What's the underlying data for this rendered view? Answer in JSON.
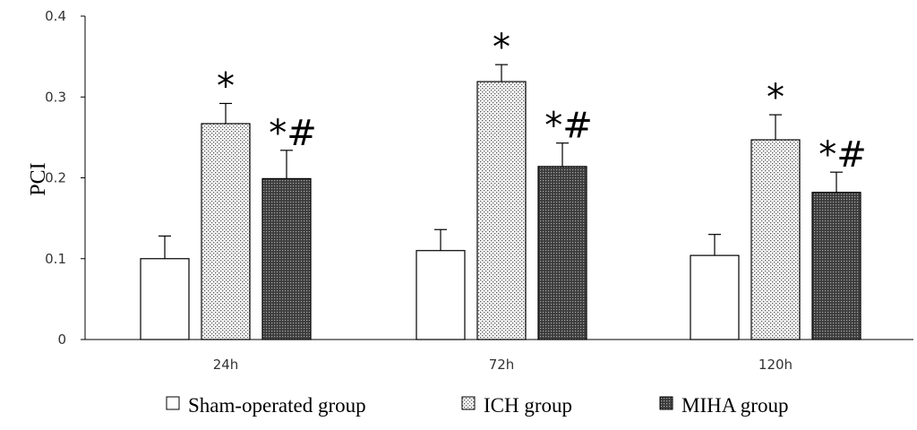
{
  "chart_data": {
    "type": "bar",
    "categories": [
      "24h",
      "72h",
      "120h"
    ],
    "series": [
      {
        "name": "Sham-operated group",
        "values": [
          0.1,
          0.11,
          0.104
        ],
        "errors": [
          0.028,
          0.026,
          0.026
        ],
        "marks": [
          "",
          "",
          ""
        ],
        "pattern": "none"
      },
      {
        "name": "ICH group",
        "values": [
          0.267,
          0.319,
          0.247
        ],
        "errors": [
          0.025,
          0.021,
          0.031
        ],
        "marks": [
          "*",
          "*",
          "*"
        ],
        "pattern": "light-dots"
      },
      {
        "name": "MIHA group",
        "values": [
          0.199,
          0.214,
          0.182
        ],
        "errors": [
          0.035,
          0.029,
          0.025
        ],
        "marks": [
          "*#",
          "*#",
          "*#"
        ],
        "pattern": "dark-dots"
      }
    ],
    "ylabel": "PCI",
    "xlabel": "",
    "ylim": [
      0,
      0.4
    ],
    "yticks": [
      "0",
      "0.1",
      "0.2",
      "0.3",
      "0.4"
    ],
    "grid": false,
    "legend_position": "bottom"
  }
}
